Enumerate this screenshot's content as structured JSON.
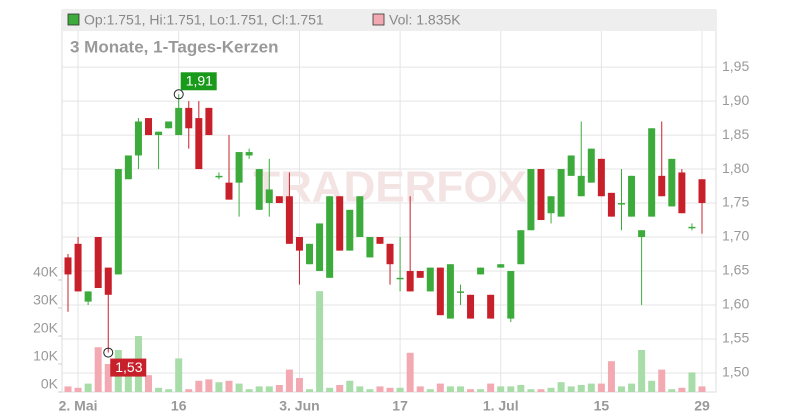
{
  "chart_data": {
    "type": "candlestick",
    "header": {
      "ohlc": "Op:1.751, Hi:1.751, Lo:1.751, Cl:1.751",
      "volume": "Vol: 1.835K"
    },
    "subtitle": "3 Monate, 1-Tages-Kerzen",
    "watermark": "TRADERFOX",
    "categories": [
      null,
      "2. Mai",
      null,
      null,
      null,
      null,
      null,
      null,
      null,
      null,
      null,
      "16",
      null,
      null,
      null,
      null,
      null,
      null,
      null,
      null,
      null,
      null,
      null,
      "3. Jun",
      null,
      null,
      null,
      null,
      null,
      null,
      null,
      null,
      null,
      "17",
      null,
      null,
      null,
      null,
      null,
      null,
      null,
      null,
      null,
      "1. Jul",
      null,
      null,
      null,
      null,
      null,
      null,
      null,
      null,
      null,
      "15",
      null,
      null,
      null,
      null,
      null,
      null,
      null,
      null,
      null,
      "29"
    ],
    "open": [
      1.67,
      1.69,
      1.605,
      1.7,
      1.655,
      1.645,
      1.785,
      1.82,
      1.875,
      1.85,
      1.86,
      1.85,
      1.89,
      1.875,
      1.89,
      1.79,
      1.78,
      1.78,
      1.82,
      1.74,
      1.75,
      1.76,
      1.76,
      1.7,
      1.66,
      1.65,
      1.64,
      1.76,
      1.68,
      1.7,
      1.67,
      1.7,
      1.69,
      1.64,
      1.65,
      1.65,
      1.62,
      1.655,
      1.58,
      1.62,
      1.615,
      1.645,
      1.615,
      1.655,
      1.58,
      1.66,
      1.71,
      1.8,
      1.735,
      1.73,
      1.79,
      1.76,
      1.78,
      1.815,
      1.765,
      1.75,
      1.73,
      1.7,
      1.73,
      1.79,
      1.745,
      1.795,
      1.715,
      1.785
    ],
    "high": [
      1.675,
      1.7,
      1.62,
      1.7,
      1.655,
      1.8,
      1.82,
      1.875,
      1.875,
      1.855,
      1.87,
      1.91,
      1.9,
      1.9,
      1.89,
      1.795,
      1.85,
      1.825,
      1.83,
      1.8,
      1.815,
      1.76,
      1.795,
      1.7,
      1.69,
      1.72,
      1.76,
      1.76,
      1.74,
      1.76,
      1.7,
      1.7,
      1.69,
      1.7,
      1.76,
      1.65,
      1.655,
      1.655,
      1.66,
      1.63,
      1.615,
      1.655,
      1.615,
      1.66,
      1.65,
      1.71,
      1.8,
      1.8,
      1.76,
      1.8,
      1.82,
      1.87,
      1.83,
      1.815,
      1.765,
      1.8,
      1.79,
      1.71,
      1.86,
      1.87,
      1.815,
      1.8,
      1.72,
      1.785
    ],
    "low": [
      1.59,
      1.62,
      1.6,
      1.625,
      1.53,
      1.645,
      1.785,
      1.8,
      1.85,
      1.8,
      1.86,
      1.85,
      1.83,
      1.8,
      1.85,
      1.785,
      1.755,
      1.73,
      1.815,
      1.74,
      1.73,
      1.75,
      1.69,
      1.63,
      1.66,
      1.65,
      1.64,
      1.68,
      1.68,
      1.7,
      1.67,
      1.69,
      1.63,
      1.62,
      1.62,
      1.64,
      1.62,
      1.585,
      1.58,
      1.6,
      1.58,
      1.645,
      1.58,
      1.655,
      1.575,
      1.66,
      1.71,
      1.725,
      1.72,
      1.73,
      1.79,
      1.76,
      1.78,
      1.76,
      1.73,
      1.71,
      1.73,
      1.6,
      1.73,
      1.76,
      1.745,
      1.735,
      1.71,
      1.705
    ],
    "close": [
      1.645,
      1.62,
      1.62,
      1.625,
      1.615,
      1.8,
      1.82,
      1.87,
      1.85,
      1.855,
      1.87,
      1.89,
      1.86,
      1.8,
      1.85,
      1.79,
      1.755,
      1.825,
      1.825,
      1.8,
      1.77,
      1.75,
      1.69,
      1.68,
      1.69,
      1.72,
      1.76,
      1.68,
      1.74,
      1.76,
      1.7,
      1.69,
      1.66,
      1.64,
      1.62,
      1.64,
      1.655,
      1.585,
      1.66,
      1.62,
      1.58,
      1.655,
      1.58,
      1.66,
      1.65,
      1.71,
      1.8,
      1.725,
      1.76,
      1.8,
      1.82,
      1.79,
      1.83,
      1.76,
      1.73,
      1.75,
      1.79,
      1.71,
      1.86,
      1.76,
      1.815,
      1.735,
      1.715,
      1.75
    ],
    "volume": [
      2000,
      1500,
      3000,
      16000,
      10000,
      15000,
      6000,
      20000,
      6000,
      1500,
      1000,
      12000,
      1000,
      4000,
      4500,
      3500,
      4000,
      3000,
      1000,
      2000,
      2000,
      2500,
      8000,
      5000,
      1000,
      36000,
      1500,
      2500,
      4000,
      2000,
      1000,
      2000,
      1500,
      1500,
      14000,
      2000,
      1000,
      3000,
      2000,
      2000,
      1000,
      1000,
      3000,
      2000,
      2000,
      2500,
      1000,
      1000,
      1500,
      3500,
      2000,
      2500,
      3000,
      3000,
      11000,
      2000,
      3000,
      15000,
      4000,
      8000,
      1000,
      1500,
      7000,
      2000
    ],
    "up_color": "#3cab3c",
    "down_color": "#c8202a",
    "volume_up_color": "#a8dca8",
    "volume_down_color": "#f2a9b2",
    "ylim": [
      1.472,
      2.034
    ],
    "yticks": [
      {
        "value": 1.5,
        "label": "1,50"
      },
      {
        "value": 1.55,
        "label": "1,55"
      },
      {
        "value": 1.6,
        "label": "1,60"
      },
      {
        "value": 1.65,
        "label": "1,65"
      },
      {
        "value": 1.7,
        "label": "1,70"
      },
      {
        "value": 1.75,
        "label": "1,75"
      },
      {
        "value": 1.8,
        "label": "1,80"
      },
      {
        "value": 1.85,
        "label": "1,85"
      },
      {
        "value": 1.9,
        "label": "1,90"
      },
      {
        "value": 1.95,
        "label": "1,95"
      }
    ],
    "y2lim": [
      0,
      136400
    ],
    "y2ticks": [
      {
        "value": 0,
        "label": "0K"
      },
      {
        "value": 10000,
        "label": "10K"
      },
      {
        "value": 20000,
        "label": "20K"
      },
      {
        "value": 30000,
        "label": "30K"
      },
      {
        "value": 40000,
        "label": "40K"
      }
    ],
    "annotations": [
      {
        "index": 11,
        "value": 1.91,
        "label": "1,91",
        "color": "#1a9a1a"
      },
      {
        "index": 4,
        "value": 1.53,
        "label": "1,53",
        "color": "#c8202a"
      }
    ],
    "grid": true
  }
}
